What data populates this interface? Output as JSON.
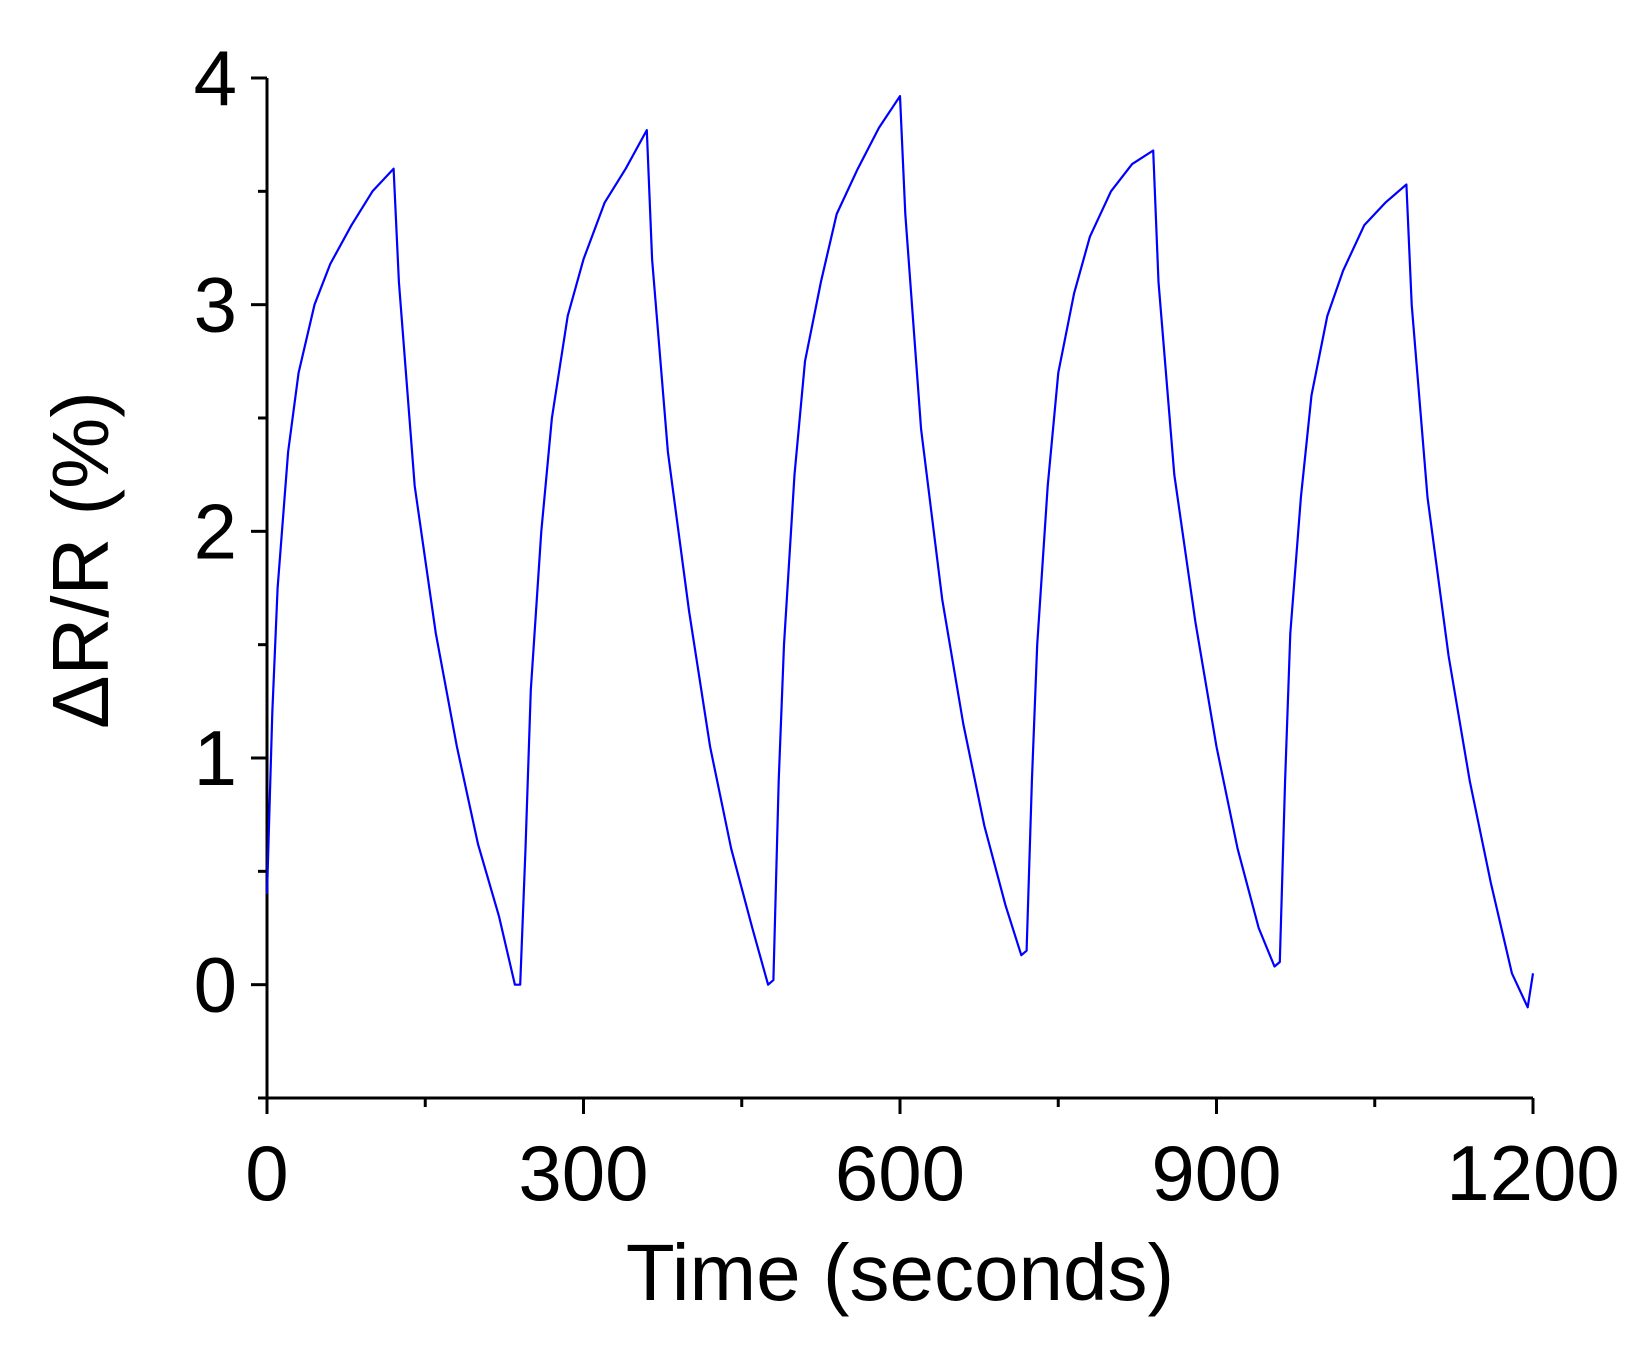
{
  "chart_data": {
    "type": "line",
    "title": "",
    "xlabel": "Time (seconds)",
    "ylabel": "ΔR/R (%)",
    "xlim": [
      0,
      1200
    ],
    "ylim": [
      -0.5,
      4
    ],
    "x_ticks": [
      "0",
      "300",
      "600",
      "900",
      "1200"
    ],
    "y_ticks": [
      "0",
      "1",
      "2",
      "3",
      "4"
    ],
    "grid": false,
    "legend": "none",
    "series_color": "#0000ff",
    "series": [
      {
        "x": [
          0,
          5,
          10,
          20,
          30,
          45,
          60,
          80,
          100,
          120,
          125,
          140,
          160,
          180,
          200,
          220,
          235,
          240,
          245,
          250,
          260,
          270,
          285,
          300,
          320,
          340,
          360,
          365,
          380,
          400,
          420,
          440,
          460,
          475,
          480,
          485,
          490,
          500,
          510,
          525,
          540,
          560,
          580,
          600,
          605,
          620,
          640,
          660,
          680,
          700,
          715,
          720,
          725,
          730,
          740,
          750,
          765,
          780,
          800,
          820,
          840,
          845,
          860,
          880,
          900,
          920,
          940,
          955,
          960,
          965,
          970,
          980,
          990,
          1005,
          1020,
          1040,
          1060,
          1080,
          1085,
          1100,
          1120,
          1140,
          1160,
          1180,
          1195,
          1200
        ],
        "y": [
          0.4,
          1.2,
          1.75,
          2.35,
          2.7,
          3.0,
          3.18,
          3.35,
          3.5,
          3.6,
          3.1,
          2.2,
          1.55,
          1.05,
          0.62,
          0.3,
          0.0,
          0.0,
          0.6,
          1.3,
          2.0,
          2.5,
          2.95,
          3.2,
          3.45,
          3.6,
          3.77,
          3.2,
          2.35,
          1.65,
          1.05,
          0.6,
          0.25,
          0.0,
          0.02,
          0.9,
          1.5,
          2.25,
          2.75,
          3.1,
          3.4,
          3.6,
          3.78,
          3.92,
          3.4,
          2.45,
          1.7,
          1.15,
          0.7,
          0.35,
          0.13,
          0.15,
          0.9,
          1.5,
          2.2,
          2.7,
          3.05,
          3.3,
          3.5,
          3.62,
          3.68,
          3.1,
          2.25,
          1.6,
          1.05,
          0.6,
          0.25,
          0.08,
          0.1,
          0.9,
          1.55,
          2.15,
          2.6,
          2.95,
          3.15,
          3.35,
          3.45,
          3.53,
          3.0,
          2.15,
          1.45,
          0.9,
          0.45,
          0.05,
          -0.1,
          0.05
        ]
      }
    ]
  }
}
